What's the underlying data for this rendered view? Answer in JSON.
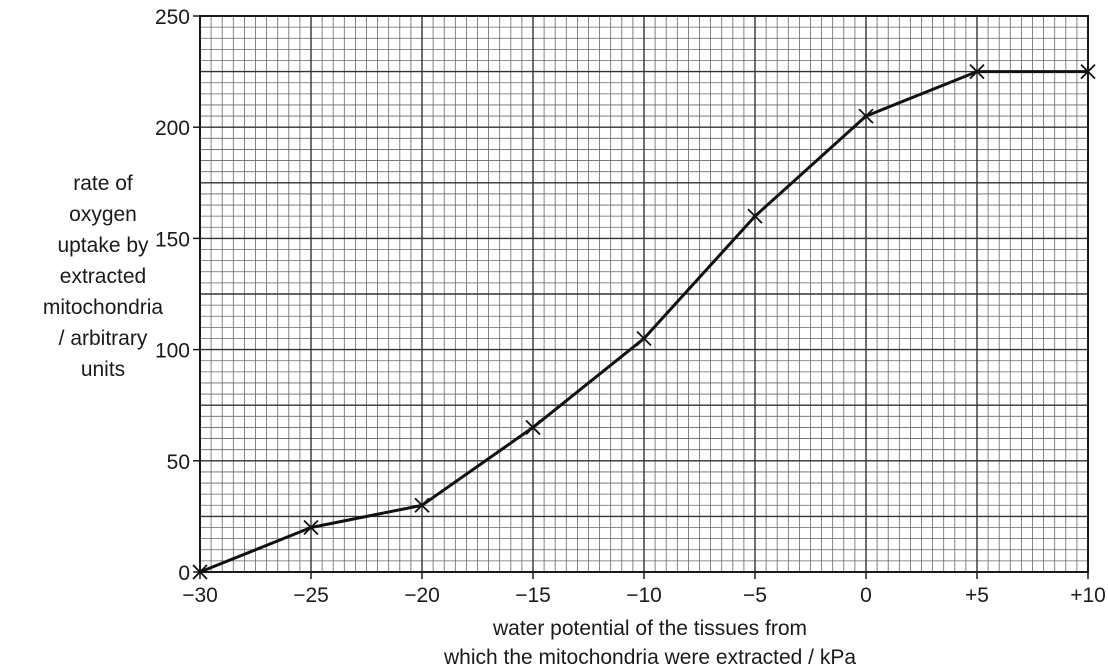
{
  "chart_data": {
    "type": "line",
    "x": [
      -30,
      -25,
      -20,
      -15,
      -10,
      -5,
      0,
      5,
      10
    ],
    "series": [
      {
        "values": [
          0,
          20,
          30,
          65,
          105,
          160,
          205,
          225,
          225
        ]
      }
    ],
    "xlim": [
      -30,
      10
    ],
    "ylim": [
      0,
      250
    ],
    "xticks": [
      -30,
      -25,
      -20,
      -15,
      -10,
      -5,
      0,
      5,
      10
    ],
    "xtick_labels": [
      "−30",
      "−25",
      "−20",
      "−15",
      "−10",
      "−5",
      "0",
      "+5",
      "+10"
    ],
    "yticks": [
      0,
      50,
      100,
      150,
      200,
      250
    ],
    "ytick_labels": [
      "0",
      "50",
      "100",
      "150",
      "200",
      "250"
    ],
    "grid": true,
    "marker": "cross",
    "ylabel_lines": [
      "rate of",
      "oxygen",
      "uptake by",
      "extracted",
      "mitochondria",
      "/ arbitrary",
      "units"
    ],
    "xlabel_lines": [
      "water potential of the tissues from",
      "which the mitochondria were extracted / kPa"
    ]
  }
}
